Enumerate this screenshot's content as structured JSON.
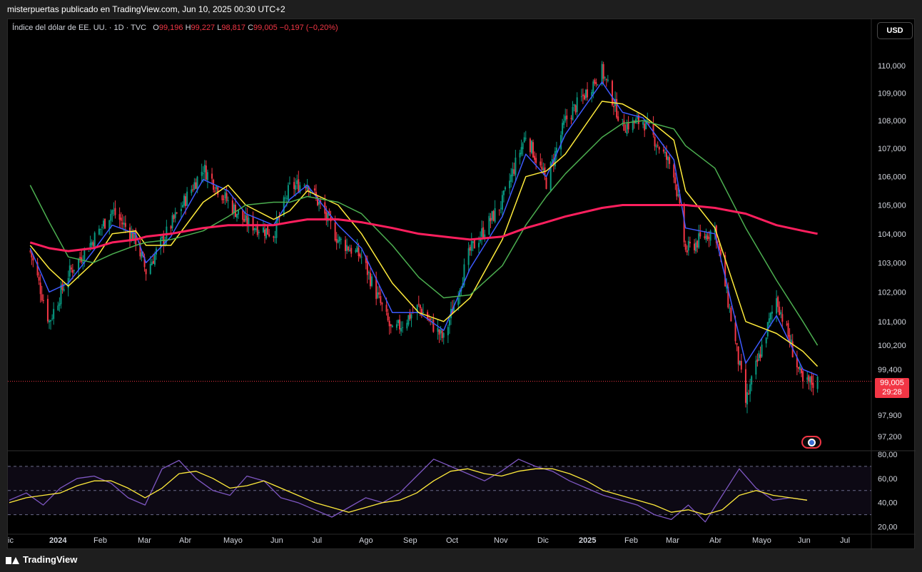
{
  "caption": "misterpuertas publicado en TradingView.com, Jun 10, 2025 00:30 UTC+2",
  "legend": {
    "symbol": "Índice del dólar de EE. UU. · 1D · TVC",
    "open_label": "O",
    "open": "99,196",
    "high_label": "H",
    "high": "99,227",
    "low_label": "L",
    "low": "98,817",
    "close_label": "C",
    "close": "99,005",
    "change": "−0,197 (−0,20%)"
  },
  "currency_button": "USD",
  "current_price": {
    "value": "99,005",
    "countdown": "29:28"
  },
  "footer": {
    "brand": "TradingView"
  },
  "chart_data": [
    {
      "type": "candlestick",
      "title": "Índice del dólar de EE. UU.",
      "x_tick_labels": [
        "ic",
        "2024",
        "Feb",
        "Mar",
        "Abr",
        "Mayo",
        "Jun",
        "Jul",
        "Ago",
        "Sep",
        "Oct",
        "Nov",
        "Dic",
        "2025",
        "Feb",
        "Mar",
        "Abr",
        "Mayo",
        "Jun",
        "Jul"
      ],
      "y_tick_labels": [
        "110,000",
        "109,000",
        "108,000",
        "107,000",
        "106,000",
        "105,000",
        "104,000",
        "103,000",
        "102,000",
        "101,000",
        "100,200",
        "99,400",
        "97,900",
        "97,200"
      ],
      "y_axis_scale": "log",
      "y_range": [
        97.0,
        111.0
      ],
      "ohlc_last": {
        "open": 99.196,
        "high": 99.227,
        "low": 98.817,
        "close": 99.005
      },
      "close_series_approx": {
        "dates": [
          "2023-12-20",
          "2024-01-02",
          "2024-01-15",
          "2024-02-01",
          "2024-02-14",
          "2024-03-01",
          "2024-03-08",
          "2024-03-25",
          "2024-04-16",
          "2024-05-03",
          "2024-05-15",
          "2024-06-03",
          "2024-06-14",
          "2024-06-26",
          "2024-07-17",
          "2024-08-02",
          "2024-08-23",
          "2024-09-10",
          "2024-09-27",
          "2024-10-15",
          "2024-11-06",
          "2024-11-22",
          "2024-12-06",
          "2024-12-19",
          "2025-01-13",
          "2025-01-27",
          "2025-02-10",
          "2025-03-03",
          "2025-03-11",
          "2025-03-31",
          "2025-04-21",
          "2025-05-12",
          "2025-05-30",
          "2025-06-09"
        ],
        "values": [
          103.4,
          101.0,
          102.6,
          103.8,
          104.8,
          103.8,
          102.7,
          104.3,
          106.3,
          105.1,
          104.4,
          104.0,
          105.6,
          105.8,
          103.8,
          103.2,
          100.6,
          101.5,
          100.4,
          103.4,
          105.1,
          107.5,
          105.8,
          108.0,
          109.8,
          107.8,
          108.0,
          106.2,
          103.4,
          104.2,
          98.3,
          101.8,
          98.9,
          99.005
        ]
      },
      "moving_averages_approx": [
        {
          "color": "#3d5afe",
          "values": [
            103.5,
            102.0,
            102.3,
            103.4,
            104.3,
            104.0,
            103.0,
            103.9,
            105.9,
            105.5,
            104.7,
            104.3,
            105.2,
            105.7,
            104.3,
            103.5,
            101.3,
            101.3,
            100.7,
            102.8,
            104.6,
            106.8,
            106.0,
            107.5,
            109.4,
            108.3,
            108.1,
            106.6,
            104.2,
            104.0,
            99.6,
            101.2,
            99.4,
            99.2
          ]
        },
        {
          "color": "#ffeb3b",
          "values": [
            103.6,
            102.8,
            102.2,
            103.0,
            104.0,
            104.1,
            103.6,
            103.6,
            105.1,
            105.7,
            105.0,
            104.5,
            104.8,
            105.5,
            105.0,
            104.0,
            102.3,
            101.3,
            101.0,
            101.8,
            103.8,
            106.0,
            106.2,
            106.8,
            108.7,
            108.6,
            108.2,
            107.3,
            105.5,
            104.2,
            101.0,
            100.6,
            100.0,
            99.5
          ]
        },
        {
          "color": "#4caf50",
          "values": [
            105.7,
            104.4,
            103.2,
            103.0,
            103.3,
            103.6,
            103.7,
            103.8,
            104.1,
            104.6,
            105.0,
            105.1,
            105.1,
            105.3,
            105.1,
            104.7,
            103.6,
            102.5,
            101.8,
            101.9,
            102.9,
            104.3,
            105.3,
            106.1,
            107.4,
            107.9,
            108.0,
            107.7,
            107.1,
            106.3,
            104.2,
            102.4,
            101.0,
            100.2
          ]
        },
        {
          "color": "#ff1f5e",
          "values": [
            103.7,
            103.5,
            103.4,
            103.5,
            103.7,
            103.8,
            103.9,
            104.0,
            104.2,
            104.3,
            104.3,
            104.3,
            104.4,
            104.5,
            104.5,
            104.4,
            104.2,
            104.0,
            103.9,
            103.8,
            103.9,
            104.2,
            104.4,
            104.6,
            104.9,
            105.0,
            105.0,
            105.0,
            105.0,
            104.9,
            104.7,
            104.3,
            104.1,
            104.0
          ]
        }
      ]
    },
    {
      "type": "line",
      "y_tick_labels": [
        "80,00",
        "60,00",
        "40,00",
        "20,00"
      ],
      "y_range": [
        15,
        80
      ],
      "band": [
        30,
        70
      ],
      "mid_line": 50,
      "series": [
        {
          "color": "#7e57c2",
          "values": [
            42,
            48,
            38,
            52,
            60,
            62,
            56,
            44,
            38,
            68,
            75,
            60,
            50,
            46,
            62,
            58,
            44,
            40,
            34,
            28,
            36,
            44,
            40,
            48,
            62,
            76,
            70,
            64,
            58,
            66,
            76,
            70,
            66,
            58,
            52,
            46,
            42,
            38,
            30,
            26,
            38,
            24,
            46,
            68,
            52,
            42,
            44,
            42
          ]
        },
        {
          "color": "#ffeb3b",
          "values": [
            40,
            44,
            46,
            48,
            54,
            58,
            58,
            52,
            44,
            52,
            64,
            66,
            60,
            52,
            54,
            58,
            52,
            46,
            40,
            36,
            32,
            36,
            40,
            42,
            48,
            58,
            66,
            68,
            64,
            62,
            66,
            68,
            68,
            64,
            58,
            50,
            46,
            42,
            38,
            32,
            34,
            30,
            34,
            46,
            50,
            46,
            44,
            42
          ]
        }
      ]
    }
  ]
}
